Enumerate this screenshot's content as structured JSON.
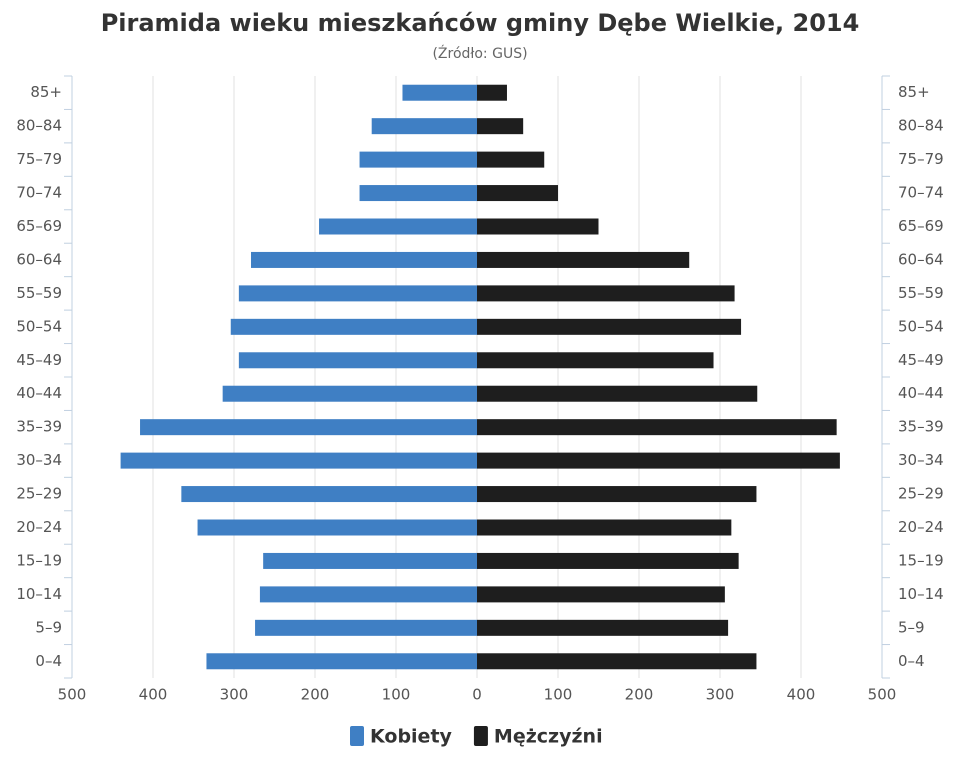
{
  "chart_data": {
    "type": "pyramid",
    "title": "Piramida wieku mieszkańców gminy Dębe Wielkie, 2014",
    "subtitle": "(Źródło: GUS)",
    "categories": [
      "0–4",
      "5–9",
      "10–14",
      "15–19",
      "20–24",
      "25–29",
      "30–34",
      "35–39",
      "40–44",
      "45–49",
      "50–54",
      "55–59",
      "60–64",
      "65–69",
      "70–74",
      "75–79",
      "80–84",
      "85+"
    ],
    "series": [
      {
        "name": "Kobiety",
        "color": "#3f7fc4",
        "values": [
          -334,
          -274,
          -268,
          -264,
          -345,
          -365,
          -440,
          -416,
          -314,
          -294,
          -304,
          -294,
          -279,
          -195,
          -145,
          -145,
          -130,
          -92
        ]
      },
      {
        "name": "Mężczyźni",
        "color": "#1e1e1e",
        "values": [
          345,
          310,
          306,
          323,
          314,
          345,
          448,
          444,
          346,
          292,
          326,
          318,
          262,
          150,
          100,
          83,
          57,
          37
        ]
      }
    ],
    "xlim": [
      -500,
      500
    ],
    "xticks": [
      {
        "value": -500,
        "label": "500"
      },
      {
        "value": -400,
        "label": "400"
      },
      {
        "value": -300,
        "label": "300"
      },
      {
        "value": -200,
        "label": "200"
      },
      {
        "value": -100,
        "label": "100"
      },
      0,
      100,
      200,
      300,
      400,
      500
    ],
    "grid": true
  }
}
